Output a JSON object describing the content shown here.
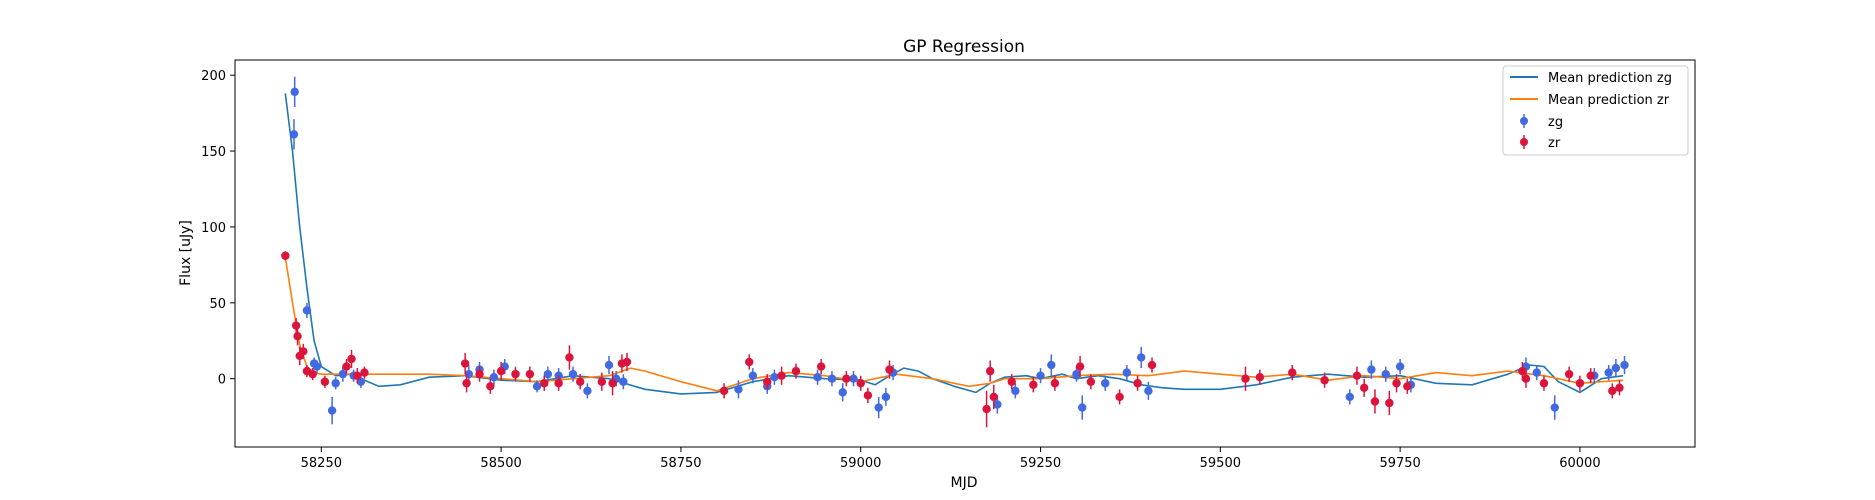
{
  "chart_data": {
    "type": "scatter",
    "title": "GP Regression",
    "xlabel": "MJD",
    "ylabel": "Flux [uJy]",
    "xlim": [
      58130,
      60160
    ],
    "ylim": [
      -45,
      210
    ],
    "xticks": [
      58250,
      58500,
      58750,
      59000,
      59250,
      59500,
      59750,
      60000
    ],
    "yticks": [
      0,
      50,
      100,
      150,
      200
    ],
    "legend_position": "top-right",
    "colors": {
      "mean_zg": "#1f77b4",
      "mean_zr": "#ff7f0e",
      "zg": "#4169e1",
      "zr": "#dc143c"
    },
    "lines": [
      {
        "name": "Mean prediction zg",
        "color": "#1f77b4",
        "x": [
          58200,
          58210,
          58220,
          58230,
          58240,
          58250,
          58270,
          58290,
          58310,
          58330,
          58360,
          58400,
          58450,
          58500,
          58550,
          58600,
          58650,
          58700,
          58750,
          58800,
          58850,
          58900,
          58950,
          59000,
          59020,
          59040,
          59060,
          59080,
          59100,
          59130,
          59160,
          59180,
          59200,
          59230,
          59250,
          59280,
          59300,
          59330,
          59360,
          59390,
          59420,
          59450,
          59500,
          59550,
          59600,
          59650,
          59700,
          59750,
          59800,
          59850,
          59900,
          59930,
          59950,
          59970,
          60000,
          60030,
          60060
        ],
        "y": [
          188,
          150,
          100,
          60,
          25,
          8,
          2,
          3,
          -1,
          -5,
          -4,
          1,
          2,
          -1,
          -2,
          2,
          0,
          -7,
          -10,
          -9,
          -2,
          2,
          0,
          -1,
          -4,
          2,
          7,
          5,
          0,
          -5,
          -9,
          -3,
          1,
          2,
          0,
          3,
          0,
          2,
          0,
          -4,
          -6,
          -7,
          -7,
          -4,
          1,
          3,
          1,
          2,
          -3,
          -4,
          3,
          9,
          8,
          -2,
          -9,
          0,
          2
        ]
      },
      {
        "name": "Mean prediction zr",
        "color": "#ff7f0e",
        "x": [
          58200,
          58210,
          58220,
          58230,
          58240,
          58250,
          58270,
          58290,
          58310,
          58330,
          58360,
          58400,
          58450,
          58500,
          58550,
          58600,
          58650,
          58680,
          58700,
          58750,
          58800,
          58850,
          58900,
          58950,
          59000,
          59050,
          59100,
          59150,
          59180,
          59200,
          59250,
          59300,
          59350,
          59400,
          59450,
          59500,
          59550,
          59600,
          59650,
          59700,
          59750,
          59800,
          59850,
          59900,
          59950,
          60000,
          60030,
          60060
        ],
        "y": [
          80,
          50,
          22,
          8,
          4,
          3,
          3,
          3,
          3,
          3,
          3,
          3,
          2,
          0,
          -2,
          0,
          2,
          7,
          5,
          -2,
          -8,
          0,
          4,
          2,
          -2,
          3,
          0,
          -5,
          -3,
          0,
          0,
          2,
          3,
          2,
          5,
          3,
          1,
          3,
          -1,
          2,
          0,
          4,
          2,
          5,
          2,
          -3,
          -2,
          -1
        ]
      }
    ],
    "series": [
      {
        "name": "zg",
        "color": "#4169e1",
        "points": [
          {
            "x": 58213,
            "y": 189,
            "err": 10
          },
          {
            "x": 58212,
            "y": 161,
            "err": 10
          },
          {
            "x": 58230,
            "y": 45,
            "err": 5
          },
          {
            "x": 58240,
            "y": 10,
            "err": 4
          },
          {
            "x": 58244,
            "y": 8,
            "err": 4
          },
          {
            "x": 58265,
            "y": -21,
            "err": 9
          },
          {
            "x": 58270,
            "y": -3,
            "err": 4
          },
          {
            "x": 58280,
            "y": 3,
            "err": 5
          },
          {
            "x": 58295,
            "y": 2,
            "err": 4
          },
          {
            "x": 58305,
            "y": -2,
            "err": 4
          },
          {
            "x": 58455,
            "y": 3,
            "err": 6
          },
          {
            "x": 58470,
            "y": 6,
            "err": 5
          },
          {
            "x": 58490,
            "y": 1,
            "err": 5
          },
          {
            "x": 58505,
            "y": 8,
            "err": 5
          },
          {
            "x": 58520,
            "y": 3,
            "err": 5
          },
          {
            "x": 58550,
            "y": -5,
            "err": 4
          },
          {
            "x": 58565,
            "y": 3,
            "err": 5
          },
          {
            "x": 58580,
            "y": 2,
            "err": 5
          },
          {
            "x": 58600,
            "y": 3,
            "err": 5
          },
          {
            "x": 58620,
            "y": -8,
            "err": 5
          },
          {
            "x": 58650,
            "y": 9,
            "err": 6
          },
          {
            "x": 58660,
            "y": 0,
            "err": 5
          },
          {
            "x": 58670,
            "y": -2,
            "err": 5
          },
          {
            "x": 58830,
            "y": -7,
            "err": 6
          },
          {
            "x": 58850,
            "y": 2,
            "err": 5
          },
          {
            "x": 58870,
            "y": -5,
            "err": 5
          },
          {
            "x": 58880,
            "y": 1,
            "err": 5
          },
          {
            "x": 58940,
            "y": 1,
            "err": 5
          },
          {
            "x": 58960,
            "y": 0,
            "err": 5
          },
          {
            "x": 58975,
            "y": -9,
            "err": 6
          },
          {
            "x": 58990,
            "y": 0,
            "err": 5
          },
          {
            "x": 59025,
            "y": -19,
            "err": 7
          },
          {
            "x": 59035,
            "y": -12,
            "err": 6
          },
          {
            "x": 59045,
            "y": 4,
            "err": 5
          },
          {
            "x": 59190,
            "y": -17,
            "err": 6
          },
          {
            "x": 59215,
            "y": -8,
            "err": 5
          },
          {
            "x": 59250,
            "y": 2,
            "err": 5
          },
          {
            "x": 59265,
            "y": 9,
            "err": 7
          },
          {
            "x": 59300,
            "y": 3,
            "err": 5
          },
          {
            "x": 59308,
            "y": -19,
            "err": 8
          },
          {
            "x": 59340,
            "y": -3,
            "err": 5
          },
          {
            "x": 59370,
            "y": 4,
            "err": 5
          },
          {
            "x": 59390,
            "y": 14,
            "err": 7
          },
          {
            "x": 59400,
            "y": -8,
            "err": 6
          },
          {
            "x": 59680,
            "y": -12,
            "err": 5
          },
          {
            "x": 59710,
            "y": 6,
            "err": 6
          },
          {
            "x": 59730,
            "y": 3,
            "err": 5
          },
          {
            "x": 59750,
            "y": 8,
            "err": 5
          },
          {
            "x": 59765,
            "y": -4,
            "err": 5
          },
          {
            "x": 59925,
            "y": 8,
            "err": 6
          },
          {
            "x": 59940,
            "y": 4,
            "err": 5
          },
          {
            "x": 59965,
            "y": -19,
            "err": 8
          },
          {
            "x": 60020,
            "y": 2,
            "err": 5
          },
          {
            "x": 60040,
            "y": 4,
            "err": 5
          },
          {
            "x": 60050,
            "y": 7,
            "err": 6
          },
          {
            "x": 60062,
            "y": 9,
            "err": 6
          }
        ]
      },
      {
        "name": "zr",
        "color": "#dc143c",
        "points": [
          {
            "x": 58200,
            "y": 81,
            "err": 3
          },
          {
            "x": 58215,
            "y": 35,
            "err": 5
          },
          {
            "x": 58217,
            "y": 28,
            "err": 6
          },
          {
            "x": 58220,
            "y": 15,
            "err": 6
          },
          {
            "x": 58225,
            "y": 18,
            "err": 5
          },
          {
            "x": 58230,
            "y": 5,
            "err": 4
          },
          {
            "x": 58238,
            "y": 3,
            "err": 4
          },
          {
            "x": 58255,
            "y": -2,
            "err": 4
          },
          {
            "x": 58285,
            "y": 8,
            "err": 5
          },
          {
            "x": 58292,
            "y": 13,
            "err": 6
          },
          {
            "x": 58300,
            "y": 2,
            "err": 5
          },
          {
            "x": 58310,
            "y": 4,
            "err": 4
          },
          {
            "x": 58450,
            "y": 10,
            "err": 7
          },
          {
            "x": 58452,
            "y": -3,
            "err": 6
          },
          {
            "x": 58470,
            "y": 3,
            "err": 5
          },
          {
            "x": 58485,
            "y": -5,
            "err": 5
          },
          {
            "x": 58500,
            "y": 5,
            "err": 6
          },
          {
            "x": 58520,
            "y": 3,
            "err": 4
          },
          {
            "x": 58540,
            "y": 3,
            "err": 5
          },
          {
            "x": 58560,
            "y": -3,
            "err": 5
          },
          {
            "x": 58580,
            "y": -3,
            "err": 5
          },
          {
            "x": 58595,
            "y": 14,
            "err": 8
          },
          {
            "x": 58610,
            "y": -2,
            "err": 5
          },
          {
            "x": 58640,
            "y": -2,
            "err": 6
          },
          {
            "x": 58655,
            "y": -3,
            "err": 8
          },
          {
            "x": 58668,
            "y": 10,
            "err": 6
          },
          {
            "x": 58675,
            "y": 11,
            "err": 6
          },
          {
            "x": 58810,
            "y": -8,
            "err": 5
          },
          {
            "x": 58845,
            "y": 11,
            "err": 5
          },
          {
            "x": 58870,
            "y": -2,
            "err": 5
          },
          {
            "x": 58890,
            "y": 2,
            "err": 6
          },
          {
            "x": 58910,
            "y": 5,
            "err": 5
          },
          {
            "x": 58945,
            "y": 8,
            "err": 5
          },
          {
            "x": 58980,
            "y": 0,
            "err": 5
          },
          {
            "x": 59000,
            "y": -3,
            "err": 5
          },
          {
            "x": 59010,
            "y": -11,
            "err": 5
          },
          {
            "x": 59040,
            "y": 6,
            "err": 6
          },
          {
            "x": 59175,
            "y": -20,
            "err": 12
          },
          {
            "x": 59180,
            "y": 5,
            "err": 7
          },
          {
            "x": 59185,
            "y": -12,
            "err": 8
          },
          {
            "x": 59210,
            "y": -2,
            "err": 5
          },
          {
            "x": 59240,
            "y": -4,
            "err": 5
          },
          {
            "x": 59270,
            "y": -3,
            "err": 5
          },
          {
            "x": 59305,
            "y": 8,
            "err": 7
          },
          {
            "x": 59320,
            "y": -2,
            "err": 5
          },
          {
            "x": 59360,
            "y": -12,
            "err": 5
          },
          {
            "x": 59385,
            "y": -3,
            "err": 5
          },
          {
            "x": 59405,
            "y": 9,
            "err": 5
          },
          {
            "x": 59535,
            "y": 0,
            "err": 8
          },
          {
            "x": 59555,
            "y": 1,
            "err": 5
          },
          {
            "x": 59600,
            "y": 4,
            "err": 5
          },
          {
            "x": 59645,
            "y": -1,
            "err": 5
          },
          {
            "x": 59690,
            "y": 2,
            "err": 6
          },
          {
            "x": 59700,
            "y": -6,
            "err": 6
          },
          {
            "x": 59715,
            "y": -15,
            "err": 8
          },
          {
            "x": 59735,
            "y": -16,
            "err": 8
          },
          {
            "x": 59745,
            "y": -3,
            "err": 6
          },
          {
            "x": 59760,
            "y": -5,
            "err": 5
          },
          {
            "x": 59920,
            "y": 5,
            "err": 6
          },
          {
            "x": 59925,
            "y": 0,
            "err": 6
          },
          {
            "x": 59950,
            "y": -3,
            "err": 5
          },
          {
            "x": 59985,
            "y": 3,
            "err": 5
          },
          {
            "x": 60000,
            "y": -3,
            "err": 5
          },
          {
            "x": 60015,
            "y": 2,
            "err": 5
          },
          {
            "x": 60045,
            "y": -8,
            "err": 5
          },
          {
            "x": 60055,
            "y": -6,
            "err": 5
          }
        ]
      }
    ]
  }
}
